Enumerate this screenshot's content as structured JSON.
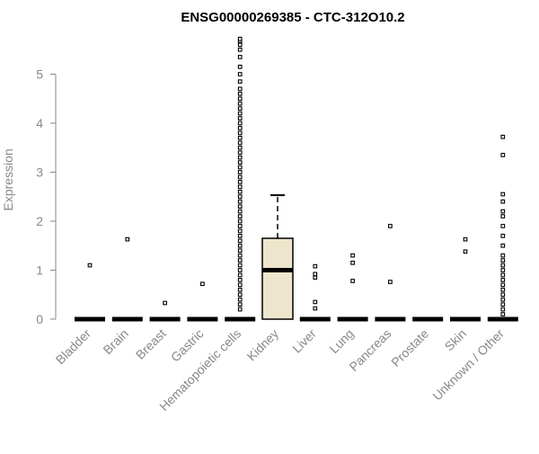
{
  "chart_data": {
    "type": "boxplot",
    "title": "ENSG00000269385 - CTC-312O10.2",
    "xlabel": "",
    "ylabel": "Expression",
    "ylim": [
      0,
      5.75
    ],
    "y_ticks": [
      0,
      1,
      2,
      3,
      4,
      5
    ],
    "grid": false,
    "legend": "none",
    "colors": {
      "box_fill": "#ede6cc",
      "stroke": "#000000",
      "axis_text": "#888888"
    },
    "categories": [
      "Bladder",
      "Brain",
      "Breast",
      "Gastric",
      "Hematopoietic cells",
      "Kidney",
      "Liver",
      "Lung",
      "Pancreas",
      "Prostate",
      "Skin",
      "Unknown / Other"
    ],
    "boxes": [
      {
        "category": "Bladder",
        "q1": 0,
        "median": 0,
        "q3": 0,
        "whisker_low": 0,
        "whisker_high": 0,
        "outliers": [
          1.1
        ]
      },
      {
        "category": "Brain",
        "q1": 0,
        "median": 0,
        "q3": 0,
        "whisker_low": 0,
        "whisker_high": 0,
        "outliers": [
          1.63
        ]
      },
      {
        "category": "Breast",
        "q1": 0,
        "median": 0,
        "q3": 0,
        "whisker_low": 0,
        "whisker_high": 0,
        "outliers": [
          0.33
        ]
      },
      {
        "category": "Gastric",
        "q1": 0,
        "median": 0,
        "q3": 0,
        "whisker_low": 0,
        "whisker_high": 0,
        "outliers": [
          0.72
        ]
      },
      {
        "category": "Hematopoietic cells",
        "q1": 0,
        "median": 0,
        "q3": 0,
        "whisker_low": 0,
        "whisker_high": 0,
        "outliers": [
          0.2,
          0.3,
          0.4,
          0.5,
          0.6,
          0.7,
          0.8,
          0.9,
          1.0,
          1.1,
          1.2,
          1.3,
          1.4,
          1.5,
          1.6,
          1.7,
          1.8,
          1.9,
          2.0,
          2.1,
          2.2,
          2.3,
          2.4,
          2.5,
          2.6,
          2.7,
          2.8,
          2.9,
          3.0,
          3.1,
          3.2,
          3.3,
          3.4,
          3.5,
          3.6,
          3.7,
          3.8,
          3.9,
          4.0,
          4.1,
          4.2,
          4.3,
          4.4,
          4.5,
          4.6,
          4.7,
          4.85,
          5.0,
          5.15,
          5.35,
          5.5,
          5.6,
          5.68,
          5.72
        ]
      },
      {
        "category": "Kidney",
        "q1": 0,
        "median": 1.0,
        "q3": 1.65,
        "whisker_low": 0,
        "whisker_high": 2.53,
        "outliers": []
      },
      {
        "category": "Liver",
        "q1": 0,
        "median": 0,
        "q3": 0,
        "whisker_low": 0,
        "whisker_high": 0,
        "outliers": [
          0.22,
          0.35,
          0.85,
          0.92,
          1.08
        ]
      },
      {
        "category": "Lung",
        "q1": 0,
        "median": 0,
        "q3": 0,
        "whisker_low": 0,
        "whisker_high": 0,
        "outliers": [
          0.78,
          1.15,
          1.3
        ]
      },
      {
        "category": "Pancreas",
        "q1": 0,
        "median": 0,
        "q3": 0,
        "whisker_low": 0,
        "whisker_high": 0,
        "outliers": [
          0.76,
          1.9
        ]
      },
      {
        "category": "Prostate",
        "q1": 0,
        "median": 0,
        "q3": 0,
        "whisker_low": 0,
        "whisker_high": 0,
        "outliers": []
      },
      {
        "category": "Skin",
        "q1": 0,
        "median": 0,
        "q3": 0,
        "whisker_low": 0,
        "whisker_high": 0,
        "outliers": [
          1.38,
          1.63
        ]
      },
      {
        "category": "Unknown / Other",
        "q1": 0,
        "median": 0,
        "q3": 0,
        "whisker_low": 0,
        "whisker_high": 0,
        "outliers": [
          0.1,
          0.2,
          0.3,
          0.4,
          0.5,
          0.6,
          0.7,
          0.8,
          0.9,
          1.0,
          1.1,
          1.2,
          1.3,
          1.5,
          1.7,
          1.9,
          2.1,
          2.2,
          2.4,
          2.55,
          3.35,
          3.72
        ]
      }
    ]
  }
}
